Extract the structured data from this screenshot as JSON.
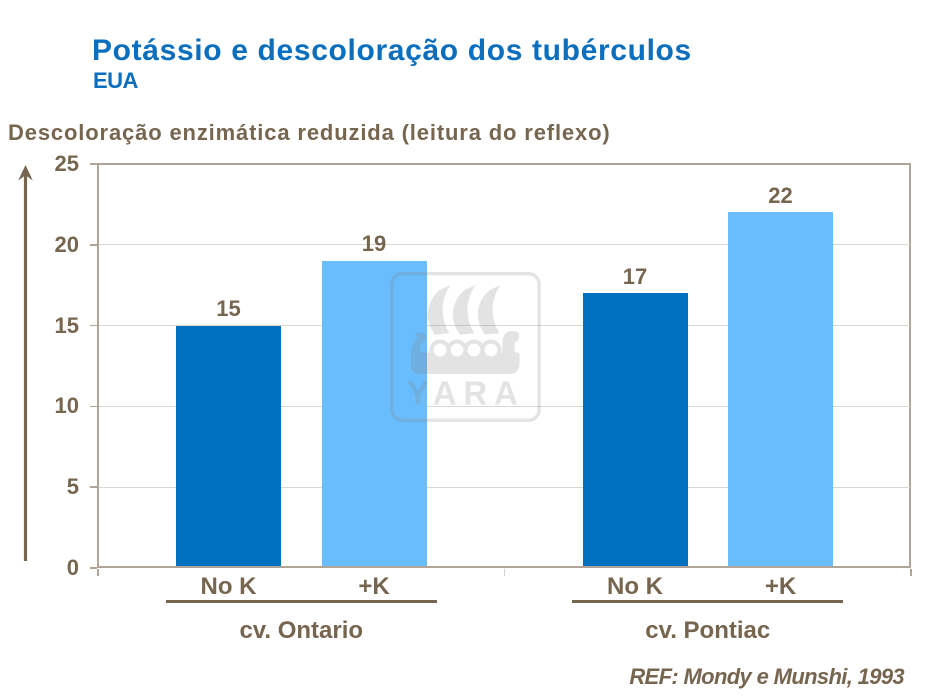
{
  "header": {
    "title": "Potássio e descoloração dos tubérculos",
    "subtitle": "EUA"
  },
  "axis_title": "Descoloração enzimática reduzida (leitura do reflexo)",
  "footer": {
    "reference": "REF: Mondy e Munshi, 1993"
  },
  "watermark": {
    "text": "YARA"
  },
  "colors": {
    "title_blue": "#0B6FBE",
    "bar_dark_blue": "#0070C0",
    "bar_light_blue": "#69BDFC",
    "text_brown": "#77664F",
    "axis_frame": "#AFA496",
    "gridline": "#DBD6D0",
    "mid_tick": "#D8D3CC"
  },
  "chart_data": {
    "type": "bar",
    "title": "Potássio e descoloração dos tubérculos",
    "subtitle": "EUA",
    "ylabel": "Descoloração enzimática reduzida (leitura do reflexo)",
    "ylim": [
      0,
      25
    ],
    "yticks": [
      0,
      5,
      10,
      15,
      20,
      25
    ],
    "grid": true,
    "legend": false,
    "categories": [
      "No K",
      "+K"
    ],
    "groups": [
      {
        "label": "cv. Ontario",
        "values": [
          15,
          19
        ]
      },
      {
        "label": "cv. Pontiac",
        "values": [
          17,
          22
        ]
      }
    ],
    "series": [
      {
        "name": "No K",
        "color": "#0070C0",
        "values": [
          15,
          17
        ]
      },
      {
        "name": "+K",
        "color": "#69BDFC",
        "values": [
          19,
          22
        ]
      }
    ],
    "reference": "REF: Mondy e Munshi, 1993"
  }
}
